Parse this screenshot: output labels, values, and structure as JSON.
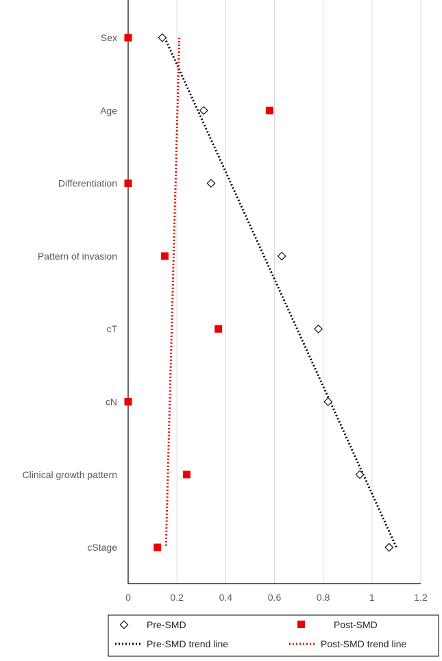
{
  "chart_data": {
    "type": "scatter",
    "categories": [
      "Sex",
      "Age",
      "Differentiation",
      "Pattern of invasion",
      "cT",
      "cN",
      "Clinical growth pattern",
      "cStage"
    ],
    "x_ticks": [
      "0",
      "0.2",
      "0.4",
      "0.6",
      "0.8",
      "1",
      "1.2"
    ],
    "xlim": [
      0,
      1.2
    ],
    "grid": "vertical",
    "legend_position": "bottom",
    "series": [
      {
        "name": "Pre-SMD",
        "marker": "diamond-open",
        "color": "#000000",
        "values": [
          0.14,
          0.31,
          0.34,
          0.63,
          0.78,
          0.82,
          0.95,
          1.07
        ]
      },
      {
        "name": "Post-SMD",
        "marker": "square-filled",
        "color": "#ee0000",
        "values": [
          0.0,
          0.58,
          0.0,
          0.15,
          0.37,
          0.0,
          0.24,
          0.12
        ]
      }
    ],
    "trend_lines": [
      {
        "name": "Pre-SMD trend line",
        "color": "#000000",
        "style": "dotted",
        "start": [
          0.15,
          0
        ],
        "end": [
          1.1,
          7
        ]
      },
      {
        "name": "Post-SMD trend line",
        "color": "#ee0000",
        "style": "dotted",
        "start": [
          0.21,
          0
        ],
        "end": [
          0.155,
          7
        ]
      }
    ]
  }
}
